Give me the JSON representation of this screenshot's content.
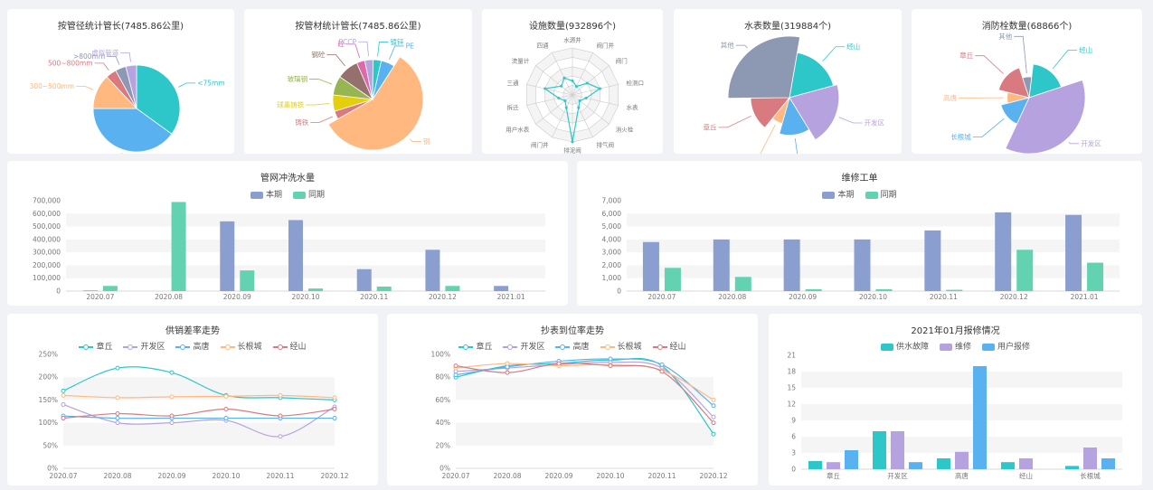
{
  "chart_data": [
    {
      "id": "pie-diameter",
      "type": "pie",
      "title": "按管径统计管长(7485.86公里)",
      "slices": [
        {
          "label": "<75mm",
          "value": 35,
          "color": "#2ec7c9"
        },
        {
          "label": "75~300mm",
          "value": 40,
          "color": "#5ab1ef"
        },
        {
          "label": "300~500mm",
          "value": 13,
          "color": "#ffb980"
        },
        {
          "label": "500~800mm",
          "value": 4,
          "color": "#d87a80"
        },
        {
          "label": ">800mm",
          "value": 4,
          "color": "#8d98b3"
        },
        {
          "label": "虚拟管道",
          "value": 4,
          "color": "#b6a2de"
        }
      ]
    },
    {
      "id": "pie-material",
      "type": "pie",
      "title": "按管材统计管长(7485.86公里)",
      "slices": [
        {
          "label": "PE",
          "value": 5,
          "color": "#5ab1ef"
        },
        {
          "label": "钢",
          "value": 52,
          "color": "#ffb980"
        },
        {
          "label": "铸铁",
          "value": 3,
          "color": "#d87a80"
        },
        {
          "label": "球墨铸铁",
          "value": 6,
          "color": "#e5cf0d"
        },
        {
          "label": "玻璃钢",
          "value": 7,
          "color": "#97b552"
        },
        {
          "label": "钢砼",
          "value": 8,
          "color": "#95706d"
        },
        {
          "label": "砼",
          "value": 3,
          "color": "#dc69aa"
        },
        {
          "label": "PCCP",
          "value": 3,
          "color": "#b6a2de"
        },
        {
          "label": "镀锌",
          "value": 3,
          "color": "#2ec7c9"
        }
      ]
    },
    {
      "id": "rose-devices",
      "type": "radar",
      "title": "设施数量(932896个)",
      "categories": [
        "水源井",
        "阀门井",
        "阀门",
        "检测口",
        "水表",
        "消火栓",
        "排气阀",
        "排泥阀",
        "阀门井",
        "用户水表",
        "拆迁",
        "三通",
        "流量计",
        "四通"
      ],
      "values": [
        3,
        2,
        4,
        6,
        3,
        2,
        3,
        10,
        3,
        2,
        3,
        6,
        3,
        4
      ]
    },
    {
      "id": "rose-meters",
      "type": "pie",
      "title": "水表数量(319884个)",
      "slices": [
        {
          "label": "经山",
          "value": 22,
          "color": "#2ec7c9"
        },
        {
          "label": "开发区",
          "value": 25,
          "color": "#b6a2de"
        },
        {
          "label": "长根城",
          "value": 16,
          "color": "#5ab1ef"
        },
        {
          "label": "高唐",
          "value": 8,
          "color": "#ffb980"
        },
        {
          "label": "章丘",
          "value": 17,
          "color": "#d87a80"
        },
        {
          "label": "其他",
          "value": 34,
          "color": "#8d98b3"
        }
      ]
    },
    {
      "id": "rose-hydrants",
      "type": "pie",
      "title": "消防栓数量(68866个)",
      "slices": [
        {
          "label": "经山",
          "value": 18,
          "color": "#2ec7c9"
        },
        {
          "label": "开发区",
          "value": 37,
          "color": "#b6a2de"
        },
        {
          "label": "长根城",
          "value": 14,
          "color": "#5ab1ef"
        },
        {
          "label": "高唐",
          "value": 8,
          "color": "#ffb980"
        },
        {
          "label": "章丘",
          "value": 16,
          "color": "#d87a80"
        },
        {
          "label": "其他",
          "value": 7,
          "color": "#8d98b3"
        }
      ]
    },
    {
      "id": "bar-flush",
      "type": "bar",
      "title": "管网冲洗水量",
      "categories": [
        "2020.07",
        "2020.08",
        "2020.09",
        "2020.10",
        "2020.11",
        "2020.12",
        "2021.01"
      ],
      "series": [
        {
          "name": "本期",
          "color": "#8a9fd0",
          "values": [
            5000,
            0,
            540000,
            550000,
            170000,
            320000,
            40000
          ]
        },
        {
          "name": "同期",
          "color": "#62d2b0",
          "values": [
            40000,
            690000,
            160000,
            20000,
            35000,
            40000,
            0
          ]
        }
      ],
      "ylim": [
        0,
        700000
      ],
      "yticks": [
        "0",
        "100,000",
        "200,000",
        "300,000",
        "400,000",
        "500,000",
        "600,000",
        "700,000"
      ]
    },
    {
      "id": "bar-repair",
      "type": "bar",
      "title": "维修工单",
      "categories": [
        "2020.07",
        "2020.08",
        "2020.09",
        "2020.10",
        "2020.11",
        "2020.12",
        "2021.01"
      ],
      "series": [
        {
          "name": "本期",
          "color": "#8a9fd0",
          "values": [
            3800,
            4000,
            4000,
            4000,
            4700,
            6100,
            5900
          ]
        },
        {
          "name": "同期",
          "color": "#62d2b0",
          "values": [
            1800,
            1100,
            150,
            150,
            100,
            3200,
            2200
          ]
        }
      ],
      "ylim": [
        0,
        7000
      ],
      "yticks": [
        "0",
        "1,000",
        "2,000",
        "3,000",
        "4,000",
        "5,000",
        "6,000",
        "7,000"
      ]
    },
    {
      "id": "line-a",
      "type": "line",
      "title": "供销差率走势",
      "categories": [
        "2020.07",
        "2020.08",
        "2020.09",
        "2020.10",
        "2020.11",
        "2020.12"
      ],
      "series": [
        {
          "name": "章丘",
          "color": "#2ec7c9",
          "values": [
            170,
            220,
            210,
            160,
            155,
            150
          ]
        },
        {
          "name": "开发区",
          "color": "#b6a2de",
          "values": [
            140,
            100,
            100,
            105,
            70,
            135
          ]
        },
        {
          "name": "高唐",
          "color": "#5ab1ef",
          "values": [
            115,
            110,
            110,
            110,
            110,
            110
          ]
        },
        {
          "name": "长根城",
          "color": "#ffb980",
          "values": [
            160,
            155,
            157,
            158,
            160,
            155
          ]
        },
        {
          "name": "经山",
          "color": "#d87a80",
          "values": [
            110,
            120,
            115,
            130,
            115,
            130
          ]
        }
      ],
      "ylim": [
        0,
        250
      ],
      "yticks": [
        "0%",
        "50%",
        "100%",
        "150%",
        "200%",
        "250%"
      ]
    },
    {
      "id": "line-b",
      "type": "line",
      "title": "抄表到位率走势",
      "categories": [
        "2020.07",
        "2020.08",
        "2020.09",
        "2020.10",
        "2020.11",
        "2020.12"
      ],
      "series": [
        {
          "name": "章丘",
          "color": "#2ec7c9",
          "values": [
            80,
            90,
            92,
            95,
            90,
            30
          ]
        },
        {
          "name": "开发区",
          "color": "#b6a2de",
          "values": [
            85,
            88,
            91,
            93,
            88,
            45
          ]
        },
        {
          "name": "高唐",
          "color": "#5ab1ef",
          "values": [
            82,
            89,
            94,
            96,
            91,
            55
          ]
        },
        {
          "name": "长根城",
          "color": "#ffb980",
          "values": [
            88,
            92,
            90,
            91,
            86,
            60
          ]
        },
        {
          "name": "经山",
          "color": "#d87a80",
          "values": [
            90,
            84,
            92,
            90,
            85,
            40
          ]
        }
      ],
      "ylim": [
        0,
        100
      ],
      "yticks": [
        "0%",
        "20%",
        "40%",
        "60%",
        "80%",
        "100%"
      ]
    },
    {
      "id": "bar-jan",
      "type": "bar",
      "title": "2021年01月报修情况",
      "categories": [
        "章丘",
        "开发区",
        "高唐",
        "经山",
        "长根城"
      ],
      "series": [
        {
          "name": "供水故障",
          "color": "#2ec7c9",
          "values": [
            1.5,
            7,
            2,
            1.3,
            0.6
          ]
        },
        {
          "name": "维修",
          "color": "#b6a2de",
          "values": [
            1.3,
            7,
            3.2,
            2,
            4
          ]
        },
        {
          "name": "用户报修",
          "color": "#5ab1ef",
          "values": [
            3.5,
            1.3,
            19,
            0,
            2
          ]
        }
      ],
      "ylim": [
        0,
        21
      ],
      "yticks": [
        "0",
        "3",
        "6",
        "9",
        "12",
        "15",
        "18",
        "21"
      ]
    }
  ]
}
